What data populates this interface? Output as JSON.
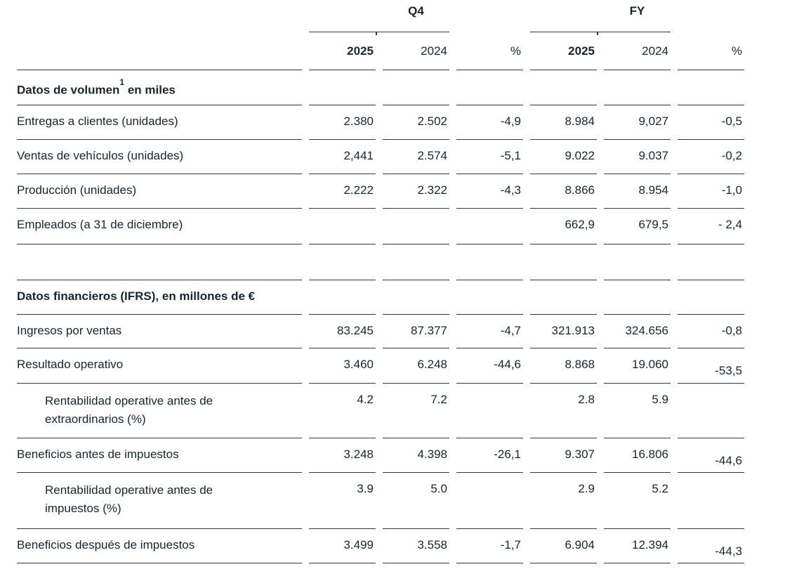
{
  "page": {
    "background": "#ffffff",
    "text_color": "#18252e",
    "line_color": "#2b3a44"
  },
  "header": {
    "group_q4": "Q4",
    "group_fy": "FY",
    "years": [
      "2025",
      "2024",
      "%",
      "2025",
      "2024",
      "%"
    ]
  },
  "section_volume": {
    "title_pre": "Datos de volumen",
    "title_sup": "1",
    "title_post": " en miles"
  },
  "section_financial": {
    "title": "Datos financieros (IFRS), en millones de €"
  },
  "rows": [
    {
      "label": "Entregas a clientes (unidades)",
      "values": [
        "2.380",
        "2.502",
        "-4,9",
        "8.984",
        "9,027",
        "-0,5"
      ]
    },
    {
      "label": "Ventas de vehículos (unidades)",
      "values": [
        "2,441",
        "2.574",
        "-5,1",
        "9.022",
        "9.037",
        "-0,2"
      ]
    },
    {
      "label": "Producción (unidades)",
      "values": [
        "2.222",
        "2.322",
        "-4,3",
        "8.866",
        "8.954",
        "-1,0"
      ]
    },
    {
      "label": "Empleados (a 31 de diciembre)",
      "values": [
        "",
        "",
        "",
        "662,9",
        "679,5",
        "- 2,4"
      ]
    },
    {
      "label": "Ingresos por ventas",
      "values": [
        "83.245",
        "87.377",
        "-4,7",
        "321.913",
        "324.656",
        "-0,8"
      ]
    },
    {
      "label": "Resultado operativo",
      "values": [
        "3.460",
        "6.248",
        "-44,6",
        "8.868",
        "19.060",
        "-53,5"
      ]
    },
    {
      "label": "Rentabilidad operative antes de extraordinarios (%)",
      "values": [
        "4.2",
        "7.2",
        "",
        "2.8",
        "5.9",
        ""
      ]
    },
    {
      "label": "Beneficios antes de impuestos",
      "values": [
        "3.248",
        "4.398",
        "-26,1",
        "9.307",
        "16.806",
        "-44,6"
      ]
    },
    {
      "label": "Rentabilidad operative antes de impuestos (%)",
      "values": [
        "3.9",
        "5.0",
        "",
        "2.9",
        "5.2",
        ""
      ]
    },
    {
      "label": "Beneficios después de impuestos",
      "values": [
        "3.499",
        "3.558",
        "-1,7",
        "6.904",
        "12.394",
        "-44,3"
      ]
    }
  ]
}
